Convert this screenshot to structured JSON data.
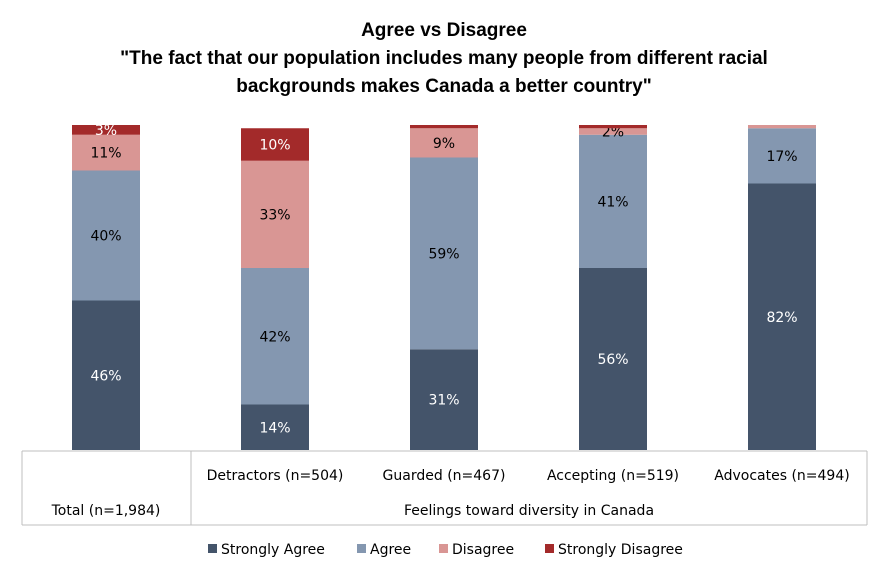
{
  "chart_data": {
    "type": "bar",
    "stacked": true,
    "title": "Agree vs Disagree",
    "subtitle": [
      "\"The fact that our population includes many people from different racial",
      "backgrounds makes Canada a better country\""
    ],
    "categories": [
      "Total (n=1,984)",
      "Detractors (n=504)",
      "Guarded (n=467)",
      "Accepting (n=519)",
      "Advocates (n=494)"
    ],
    "group_label": "Feelings toward diversity in Canada",
    "series": [
      {
        "name": "Strongly Agree",
        "color": "#44546a",
        "values": [
          46,
          14,
          31,
          56,
          82
        ],
        "labels": [
          "46%",
          "14%",
          "31%",
          "56%",
          "82%"
        ]
      },
      {
        "name": "Agree",
        "color": "#8497b0",
        "values": [
          40,
          42,
          59,
          41,
          17
        ],
        "labels": [
          "40%",
          "42%",
          "59%",
          "41%",
          "17%"
        ]
      },
      {
        "name": "Disagree",
        "color": "#d99694",
        "values": [
          11,
          33,
          9,
          2,
          1
        ],
        "labels": [
          "11%",
          "33%",
          "9%",
          "2%",
          ""
        ]
      },
      {
        "name": "Strongly Disagree",
        "color": "#a32a2a",
        "values": [
          3,
          10,
          1,
          1,
          0
        ],
        "labels": [
          "3%",
          "10%",
          "",
          "",
          ""
        ]
      }
    ],
    "ylim": [
      0,
      100
    ],
    "legend_position": "bottom",
    "grid": false
  }
}
